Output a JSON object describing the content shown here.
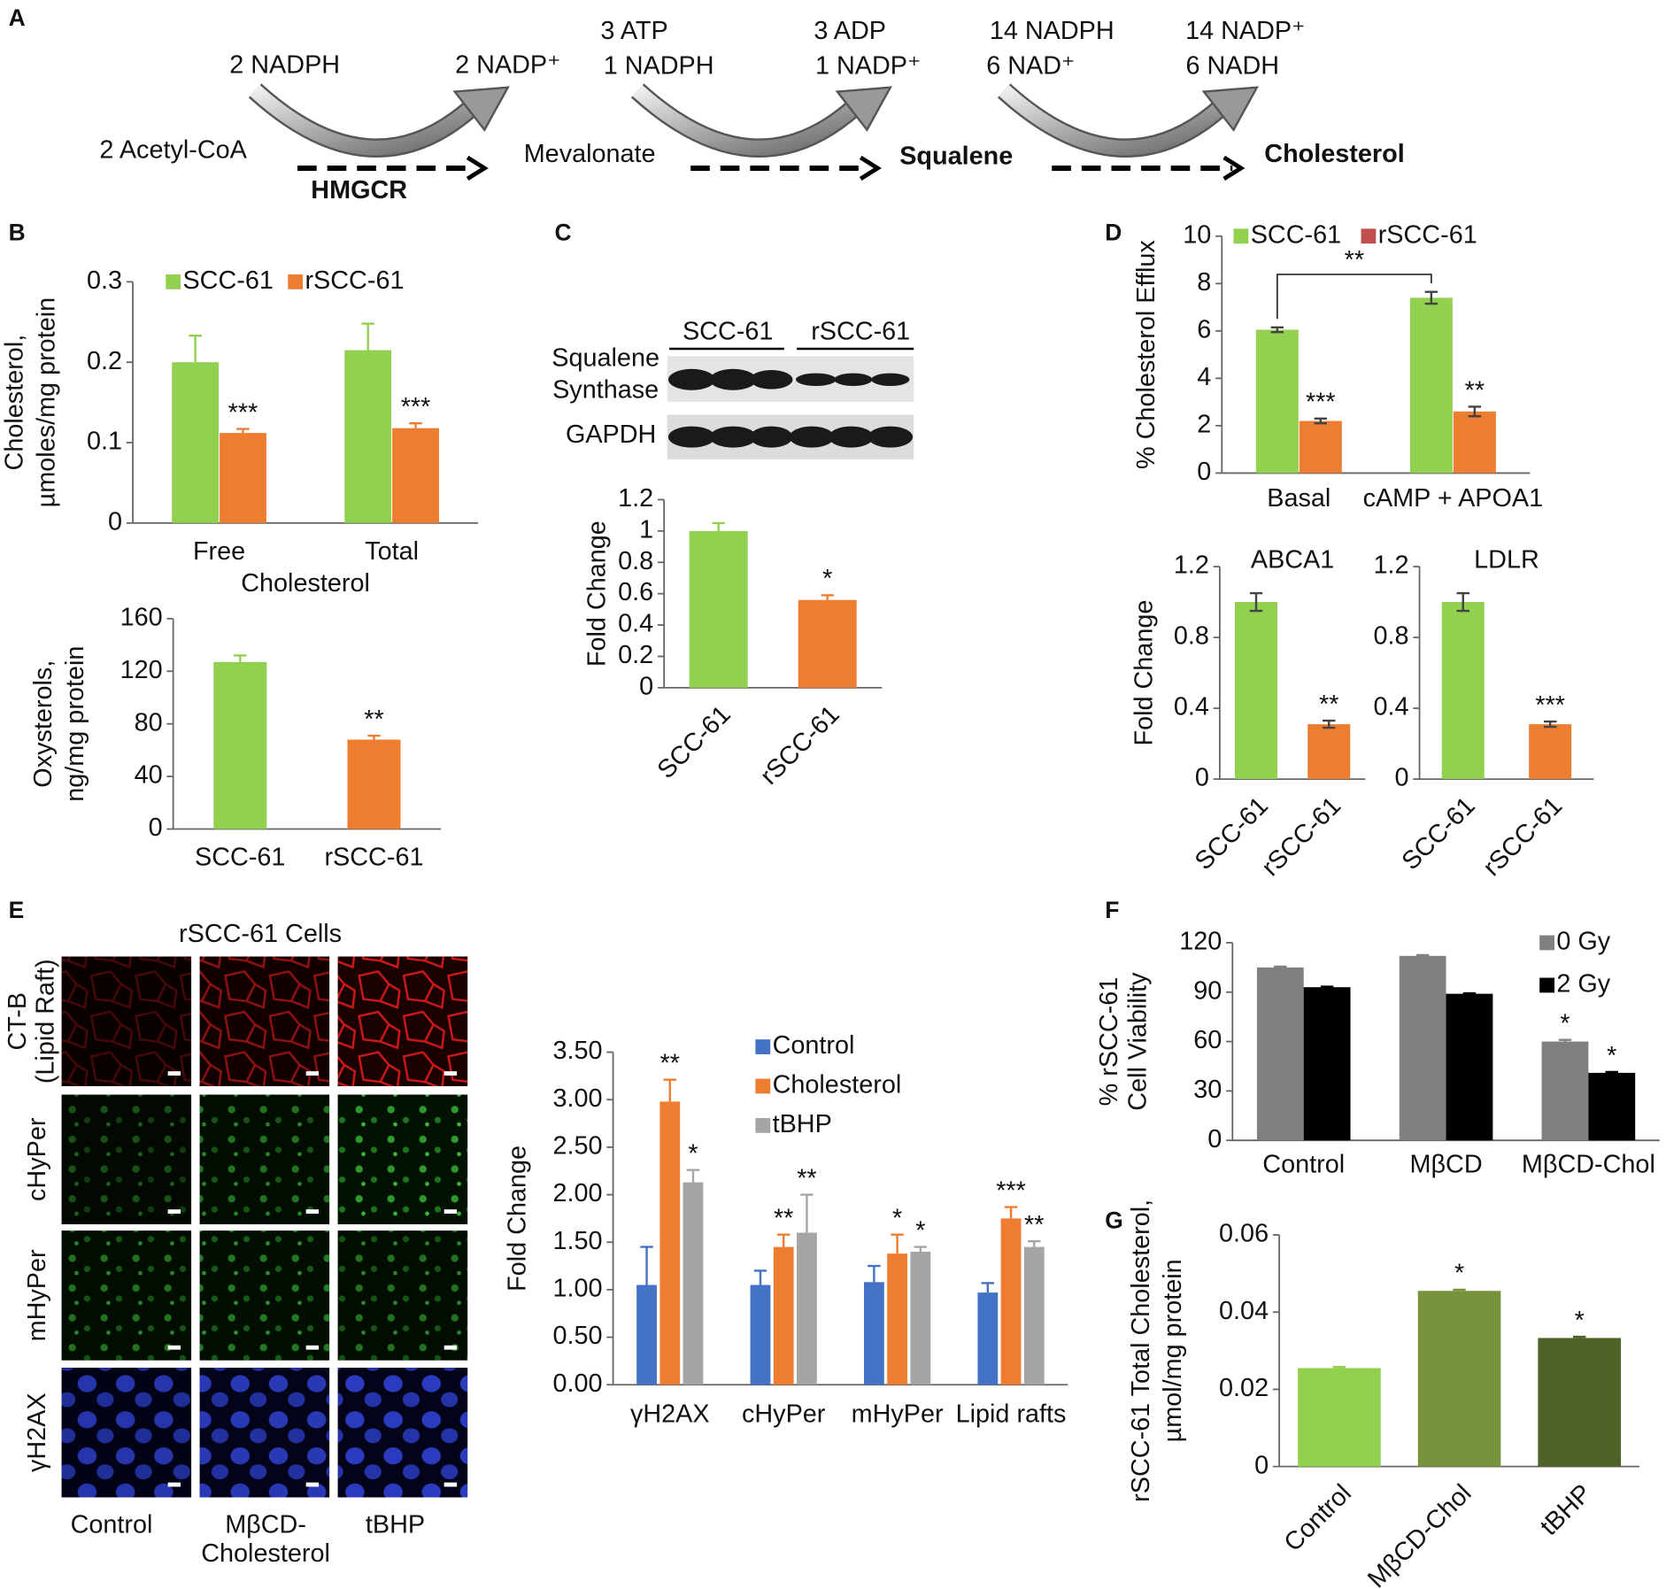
{
  "panels": [
    "A",
    "B",
    "C",
    "D",
    "E",
    "F",
    "G"
  ],
  "pathway": {
    "cofactors": [
      "2 NADPH",
      "2 NADP⁺",
      "3 ATP",
      "1 NADPH",
      "3 ADP",
      "1 NADP⁺",
      "14 NADPH",
      "6 NAD⁺",
      "14 NADP⁺",
      "6 NADH"
    ],
    "metabolites": [
      "2 Acetyl-CoA",
      "Mevalonate",
      "Squalene",
      "Cholesterol"
    ],
    "enzyme": "HMGCR"
  },
  "blot": {
    "groups": [
      "SCC-61",
      "rSCC-61"
    ],
    "rows": [
      [
        "Squalene",
        "Synthase"
      ],
      [
        "GAPDH"
      ]
    ]
  },
  "microscopy": {
    "title": "rSCC-61 Cells",
    "rows": [
      [
        "CT-B",
        "(Lipid Raft)"
      ],
      [
        "cHyPer"
      ],
      [
        "mHyPer"
      ],
      [
        "γH2AX"
      ]
    ],
    "columns": [
      [
        "Control"
      ],
      [
        "MβCD-",
        "Cholesterol"
      ],
      [
        "tBHP"
      ]
    ]
  },
  "chart_data": [
    {
      "type": "bar",
      "ylabel": [
        "Cholesterol,",
        "µmoles/mg protein"
      ],
      "xlabel": "Cholesterol",
      "categories": [
        "Free",
        "Total"
      ],
      "series": [
        {
          "name": "SCC-61",
          "color": "#92d050",
          "values": [
            0.2,
            0.215
          ],
          "errors": [
            0.033,
            0.033
          ],
          "significance": [
            null,
            null
          ]
        },
        {
          "name": "rSCC-61",
          "color": "#ed7d31",
          "values": [
            0.112,
            0.118
          ],
          "errors": [
            0.005,
            0.006
          ],
          "significance": [
            "***",
            "***"
          ]
        }
      ],
      "ylim": [
        0,
        0.3
      ],
      "yticks": [
        0,
        0.1,
        0.2,
        0.3
      ]
    },
    {
      "type": "bar",
      "ylabel": [
        "Oxysterols,",
        "ng/mg protein"
      ],
      "categories": [
        "SCC-61",
        "rSCC-61"
      ],
      "values": [
        127,
        68
      ],
      "errors": [
        5,
        3
      ],
      "colors": [
        "#92d050",
        "#ed7d31"
      ],
      "significance": [
        null,
        "**"
      ],
      "ylim": [
        0,
        160
      ],
      "yticks": [
        0,
        40,
        80,
        120,
        160
      ]
    },
    {
      "type": "bar",
      "ylabel": [
        "Fold Change"
      ],
      "categories": [
        "SCC-61",
        "rSCC-61"
      ],
      "values": [
        1,
        0.56
      ],
      "errors": [
        0.05,
        0.03
      ],
      "colors": [
        "#92d050",
        "#ed7d31"
      ],
      "significance": [
        null,
        "*"
      ],
      "ylim": [
        0,
        1.2
      ],
      "yticks": [
        0,
        0.2,
        0.4,
        0.6,
        0.8,
        1,
        1.2
      ]
    },
    {
      "type": "bar",
      "ylabel": [
        "% Cholesterol Efflux"
      ],
      "categories": [
        "Basal",
        "cAMP + APOA1"
      ],
      "series": [
        {
          "name": "SCC-61",
          "color": "#92d050",
          "values": [
            6.05,
            7.4
          ],
          "errors": [
            0.1,
            0.25
          ],
          "significance": [
            null,
            null
          ]
        },
        {
          "name": "rSCC-61",
          "color": "#ed7d31",
          "legend_color": "#c0504d",
          "values": [
            2.2,
            2.6
          ],
          "errors": [
            0.1,
            0.2
          ],
          "significance": [
            "***",
            "**"
          ]
        }
      ],
      "bracket_label": "**",
      "ylim": [
        0,
        10
      ],
      "yticks": [
        0,
        2,
        4,
        6,
        8,
        10
      ]
    },
    {
      "type": "bar",
      "title": "ABCA1",
      "ylabel": [
        "Fold Change"
      ],
      "categories": [
        "SCC-61",
        "rSCC-61"
      ],
      "values": [
        1,
        0.31
      ],
      "errors": [
        0.05,
        0.02
      ],
      "colors": [
        "#92d050",
        "#ed7d31"
      ],
      "significance": [
        null,
        "**"
      ],
      "ylim": [
        0,
        1.2
      ],
      "yticks": [
        0,
        0.4,
        0.8,
        1.2
      ]
    },
    {
      "type": "bar",
      "title": "LDLR",
      "categories": [
        "SCC-61",
        "rSCC-61"
      ],
      "values": [
        1,
        0.31
      ],
      "errors": [
        0.05,
        0.015
      ],
      "colors": [
        "#92d050",
        "#ed7d31"
      ],
      "significance": [
        null,
        "***"
      ],
      "ylim": [
        0,
        1.2
      ],
      "yticks": [
        0,
        0.4,
        0.8,
        1.2
      ]
    },
    {
      "type": "bar",
      "ylabel": [
        "Fold Change"
      ],
      "categories": [
        "γH2AX",
        "cHyPer",
        "mHyPer",
        "Lipid rafts"
      ],
      "series": [
        {
          "name": "Control",
          "color": "#4472c4",
          "values": [
            1.05,
            1.05,
            1.08,
            0.97
          ],
          "errors": [
            0.4,
            0.15,
            0.17,
            0.1
          ],
          "significance": [
            null,
            null,
            null,
            null
          ]
        },
        {
          "name": "Cholesterol",
          "color": "#ed7d31",
          "values": [
            2.98,
            1.45,
            1.38,
            1.75
          ],
          "errors": [
            0.23,
            0.13,
            0.2,
            0.12
          ],
          "significance": [
            "**",
            "**",
            "*",
            "***"
          ]
        },
        {
          "name": "tBHP",
          "color": "#a5a5a5",
          "values": [
            2.13,
            1.6,
            1.4,
            1.45
          ],
          "errors": [
            0.13,
            0.4,
            0.05,
            0.06
          ],
          "significance": [
            "*",
            "**",
            "*",
            "**"
          ]
        }
      ],
      "ylim": [
        0,
        3.5
      ],
      "yticks": [
        {
          "value": 0,
          "label": "0.00"
        },
        {
          "value": 0.5,
          "label": "0.50"
        },
        {
          "value": 1,
          "label": "1.00"
        },
        {
          "value": 1.5,
          "label": "1.50"
        },
        {
          "value": 2,
          "label": "2.00"
        },
        {
          "value": 2.5,
          "label": "2.50"
        },
        {
          "value": 3,
          "label": "3.00"
        },
        {
          "value": 3.5,
          "label": "3.50"
        }
      ]
    },
    {
      "type": "bar",
      "ylabel": [
        "% rSCC-61",
        "Cell Viability"
      ],
      "categories": [
        "Control",
        "MβCD",
        "MβCD-Chol"
      ],
      "series": [
        {
          "name": "0 Gy",
          "color": "#808080",
          "values": [
            105,
            112,
            60
          ],
          "errors": [
            0.5,
            0.5,
            1
          ],
          "significance": [
            null,
            null,
            "*"
          ]
        },
        {
          "name": "2 Gy",
          "color": "#000000",
          "values": [
            93,
            89,
            41
          ],
          "errors": [
            0.3,
            0.3,
            0.5
          ],
          "significance": [
            null,
            null,
            "*"
          ]
        }
      ],
      "legend": "upper right",
      "ylim": [
        0,
        120
      ],
      "yticks": [
        0,
        30,
        60,
        90,
        120
      ]
    },
    {
      "type": "bar",
      "ylabel": [
        "rSCC-61 Total Cholesterol,",
        "µmol/mg protein"
      ],
      "categories": [
        "Control",
        "MβCD-Chol",
        "tBHP"
      ],
      "values": [
        0.0255,
        0.0455,
        0.0333
      ],
      "errors": [
        0.0003,
        0.0003,
        0.0003
      ],
      "colors": [
        "#92d050",
        "#77933c",
        "#4f6228"
      ],
      "significance": [
        null,
        "*",
        "*"
      ],
      "ylim": [
        0,
        0.06
      ],
      "yticks": [
        0,
        0.02,
        0.04,
        0.06
      ]
    }
  ]
}
